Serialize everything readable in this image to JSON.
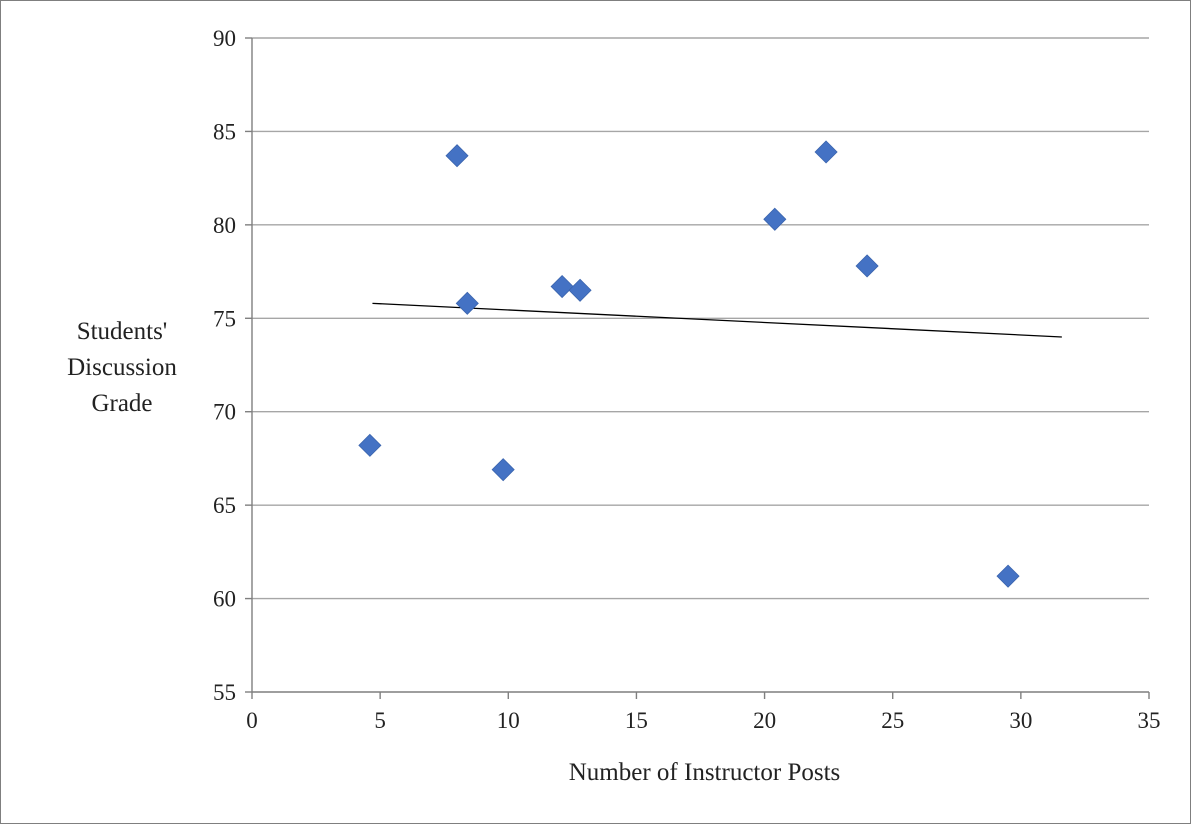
{
  "chart_data": {
    "type": "scatter",
    "title": "",
    "xlabel": "Number of Instructor Posts",
    "ylabel_lines": [
      "Students'",
      "Discussion",
      "Grade"
    ],
    "xlim": [
      0,
      35
    ],
    "ylim": [
      55,
      90
    ],
    "xticks": [
      0,
      5,
      10,
      15,
      20,
      25,
      30,
      35
    ],
    "yticks": [
      55,
      60,
      65,
      70,
      75,
      80,
      85,
      90
    ],
    "grid": "horizontal",
    "legend": "none",
    "series": [
      {
        "marker": "diamond",
        "color": "#4472C4",
        "points": [
          {
            "x": 4.6,
            "y": 68.2
          },
          {
            "x": 8.0,
            "y": 83.7
          },
          {
            "x": 8.4,
            "y": 75.8
          },
          {
            "x": 9.8,
            "y": 66.9
          },
          {
            "x": 12.1,
            "y": 76.7
          },
          {
            "x": 12.8,
            "y": 76.5
          },
          {
            "x": 20.4,
            "y": 80.3
          },
          {
            "x": 22.4,
            "y": 83.9
          },
          {
            "x": 24.0,
            "y": 77.8
          },
          {
            "x": 29.5,
            "y": 61.2
          }
        ]
      }
    ],
    "trendline": {
      "type": "linear",
      "color": "#000000",
      "from": {
        "x": 4.7,
        "y": 75.8
      },
      "to": {
        "x": 31.6,
        "y": 74.0
      }
    }
  }
}
